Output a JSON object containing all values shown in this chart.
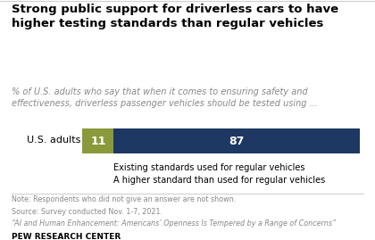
{
  "title": "Strong public support for driverless cars to have\nhigher testing standards than regular vehicles",
  "subtitle": "% of U.S. adults who say that when it comes to ensuring safety and\neffectiveness, driverless passenger vehicles should be tested using ...",
  "category": "U.S. adults",
  "value_green": 11,
  "value_blue": 87,
  "color_green": "#8a9a3a",
  "color_blue": "#1e3864",
  "legend_green": "Existing standards used for regular vehicles",
  "legend_blue": "A higher standard than used for regular vehicles",
  "note_line1": "Note: Respondents who did not give an answer are not shown.",
  "note_line2": "Source: Survey conducted Nov. 1-7, 2021.",
  "note_line3": "“AI and Human Enhancement: Americans’ Openness Is Tempered by a Range of Concerns”",
  "footer": "PEW RESEARCH CENTER",
  "bg_color": "#ffffff",
  "title_color": "#000000",
  "subtitle_color": "#888888",
  "note_color": "#888888",
  "label_color": "#ffffff",
  "label_size": 9
}
